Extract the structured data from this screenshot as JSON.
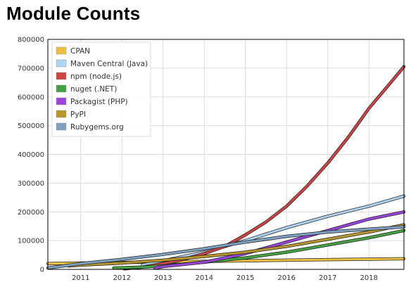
{
  "title": "Module Counts",
  "chart_data": {
    "type": "line",
    "title": "Module Counts",
    "xlabel": "",
    "ylabel": "",
    "xlim": [
      2010.2,
      2018.85
    ],
    "ylim": [
      0,
      800000
    ],
    "x_ticks": [
      2011,
      2012,
      2013,
      2014,
      2015,
      2016,
      2017,
      2018
    ],
    "x_tick_labels": [
      "2011",
      "2012",
      "2013",
      "2014",
      "2015",
      "2016",
      "2017",
      "2018"
    ],
    "y_ticks": [
      0,
      100000,
      200000,
      300000,
      400000,
      500000,
      600000,
      700000,
      800000
    ],
    "y_tick_labels": [
      "0",
      "100000",
      "200000",
      "300000",
      "400000",
      "500000",
      "600000",
      "700000",
      "800000"
    ],
    "grid": true,
    "legend_position": "top-left",
    "series": [
      {
        "name": "CPAN",
        "color": "#ecc142",
        "x": [
          2010.2,
          2011.0,
          2012.0,
          2013.0,
          2014.0,
          2015.0,
          2016.0,
          2017.0,
          2018.0,
          2018.85
        ],
        "y": [
          20000,
          22000,
          24000,
          26000,
          28000,
          30000,
          32000,
          34000,
          35500,
          37000
        ]
      },
      {
        "name": "Maven Central (Java)",
        "color": "#aed4f3",
        "x": [
          2012.5,
          2013.0,
          2014.0,
          2015.0,
          2016.0,
          2017.0,
          2018.0,
          2018.85
        ],
        "y": [
          15000,
          30000,
          60000,
          100000,
          145000,
          185000,
          220000,
          255000
        ]
      },
      {
        "name": "npm (node.js)",
        "color": "#cc4444",
        "x": [
          2012.05,
          2012.5,
          2013.0,
          2013.5,
          2014.0,
          2014.5,
          2015.0,
          2015.5,
          2016.0,
          2016.5,
          2017.0,
          2017.5,
          2018.0,
          2018.5,
          2018.85
        ],
        "y": [
          2000,
          8000,
          20000,
          35000,
          55000,
          80000,
          120000,
          165000,
          220000,
          290000,
          370000,
          460000,
          560000,
          645000,
          705000
        ]
      },
      {
        "name": "nuget (.NET)",
        "color": "#44a244",
        "x": [
          2011.8,
          2012.5,
          2013.0,
          2014.0,
          2015.0,
          2016.0,
          2017.0,
          2018.0,
          2018.85
        ],
        "y": [
          5000,
          8000,
          12000,
          25000,
          40000,
          60000,
          85000,
          110000,
          135000
        ]
      },
      {
        "name": "Packagist (PHP)",
        "color": "#9944dd",
        "x": [
          2012.8,
          2013.0,
          2014.0,
          2015.0,
          2016.0,
          2017.0,
          2018.0,
          2018.85
        ],
        "y": [
          4000,
          10000,
          25000,
          55000,
          95000,
          135000,
          175000,
          200000
        ]
      },
      {
        "name": "PyPI",
        "color": "#b8962e",
        "x": [
          2010.7,
          2011.0,
          2012.0,
          2013.0,
          2014.0,
          2015.0,
          2016.0,
          2017.0,
          2018.0,
          2018.85
        ],
        "y": [
          12000,
          15000,
          22000,
          32000,
          45000,
          60000,
          80000,
          105000,
          130000,
          155000
        ]
      },
      {
        "name": "Rubygems.org",
        "color": "#7fa1c1",
        "x": [
          2010.2,
          2011.0,
          2012.0,
          2013.0,
          2014.0,
          2015.0,
          2016.0,
          2017.0,
          2018.0,
          2018.85
        ],
        "y": [
          5000,
          20000,
          35000,
          52000,
          72000,
          95000,
          115000,
          130000,
          140000,
          148000
        ]
      }
    ]
  }
}
